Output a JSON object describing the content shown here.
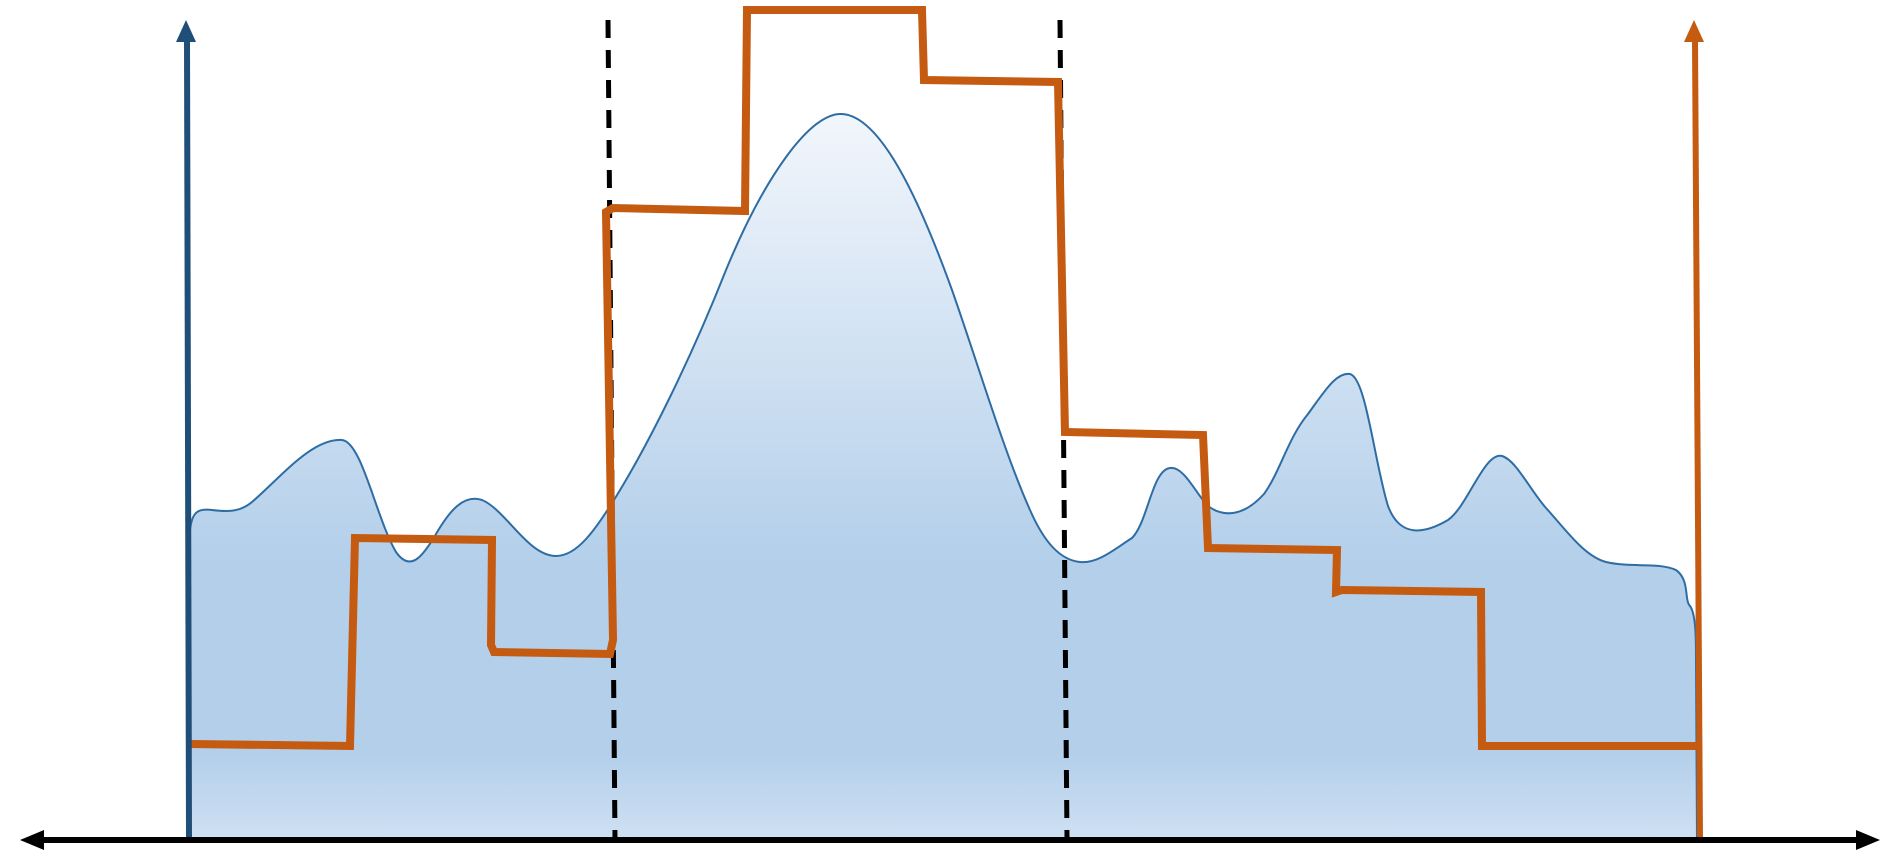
{
  "diagram": {
    "colors": {
      "background": "#ffffff",
      "left_axis": "#1f4e79",
      "right_axis": "#c55a11",
      "step_line": "#c55a11",
      "curve_stroke": "#2e6da4",
      "fill_top": "#f2f6fc",
      "fill_mid": "#b3cfea",
      "fill_bottom": "#cfe0f3",
      "baseline": "#000000",
      "divider": "#000000"
    },
    "elements": [
      "baseline-double-arrow",
      "left-vertical-axis-arrow",
      "right-vertical-axis-arrow",
      "smooth-filled-curve",
      "stepped-orange-line",
      "dashed-divider-left",
      "dashed-divider-right"
    ]
  }
}
